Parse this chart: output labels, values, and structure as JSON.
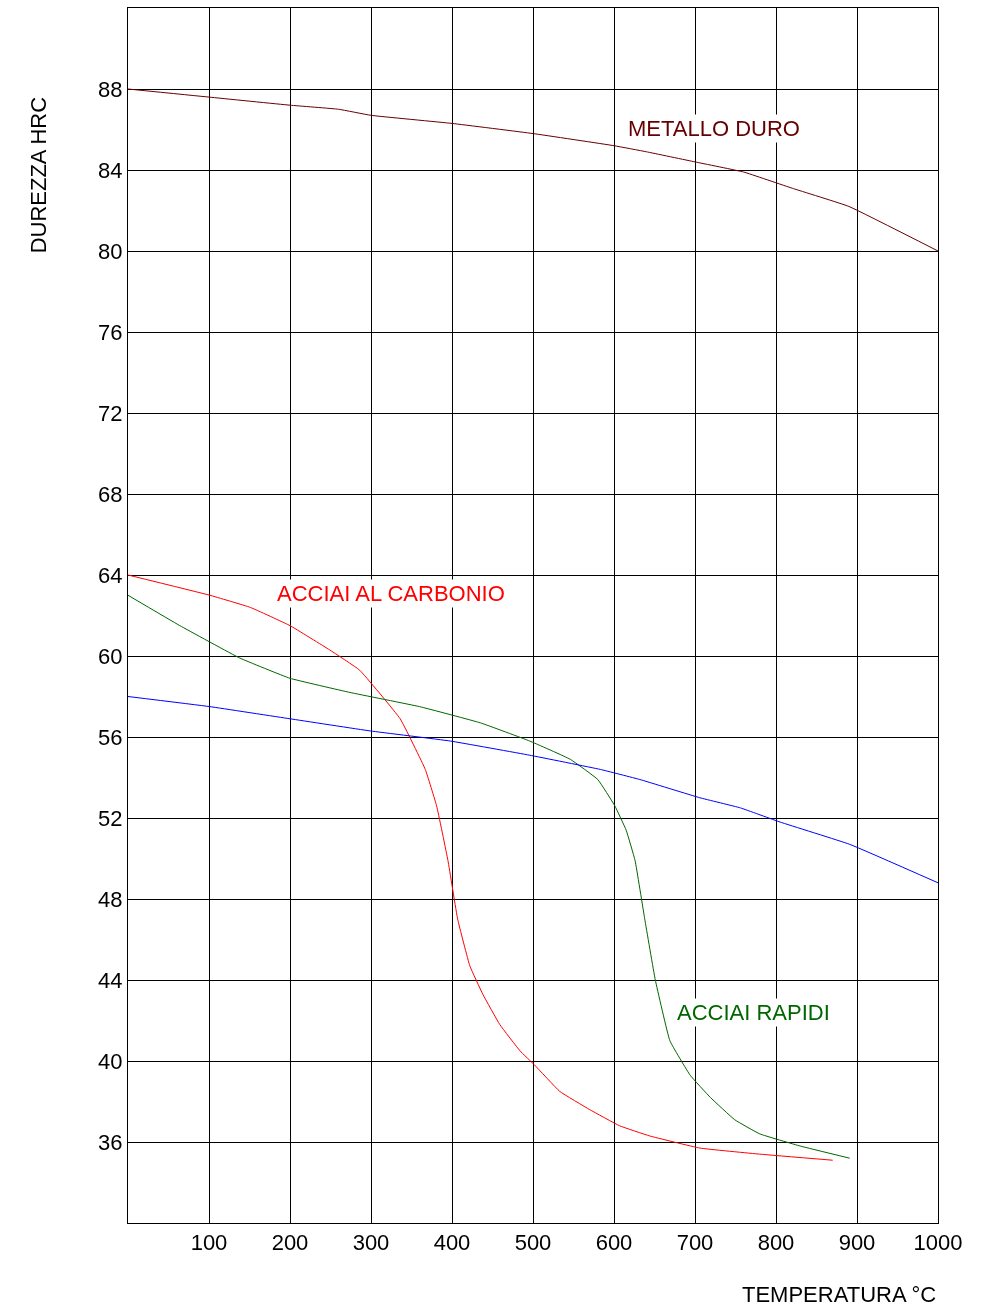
{
  "chart_data": {
    "type": "line",
    "xlabel": "TEMPERATURA °C",
    "ylabel": "DUREZZA HRC",
    "xlim": [
      0,
      1000
    ],
    "xticks": [
      100,
      200,
      300,
      400,
      500,
      600,
      700,
      800,
      900,
      1000
    ],
    "ylim": [
      32,
      92
    ],
    "yticks": [
      36,
      40,
      44,
      48,
      52,
      56,
      60,
      64,
      68,
      72,
      76,
      80,
      84,
      88
    ],
    "grid": true,
    "legend": false,
    "marker": "none",
    "line_style": "solid",
    "series": [
      {
        "name": "METALLO DURO",
        "color": "#660000",
        "x": [
          0,
          100,
          200,
          260,
          300,
          400,
          500,
          600,
          640,
          700,
          760,
          820,
          890,
          1000
        ],
        "values": [
          88,
          87.6,
          87.2,
          87.0,
          86.7,
          86.3,
          85.8,
          85.2,
          84.9,
          84.4,
          83.9,
          83.1,
          82.2,
          80
        ]
      },
      {
        "name": "ACCIAI AL CARBONIO",
        "color": "#ff0000",
        "x": [
          0,
          101,
          151,
          200,
          249,
          286,
          336,
          367,
          381,
          395,
          407,
          422,
          438,
          459,
          484,
          502,
          533,
          570,
          607,
          644,
          706,
          780,
          870
        ],
        "values": [
          64,
          63.0,
          62.4,
          61.5,
          60.3,
          59.3,
          56.9,
          54.4,
          52.6,
          49.9,
          47.0,
          44.7,
          43.3,
          41.8,
          40.5,
          39.8,
          38.5,
          37.6,
          36.8,
          36.3,
          35.7,
          35.4,
          35.1
        ]
      },
      {
        "name": "ACCIAI RAPIDI",
        "color": "#006600",
        "x": [
          0,
          64,
          138,
          200,
          274,
          360,
          435,
          496,
          546,
          580,
          601,
          615,
          626,
          638,
          651,
          669,
          694,
          719,
          749,
          780,
          830,
          891
        ],
        "values": [
          63.0,
          61.5,
          59.9,
          58.9,
          58.2,
          57.5,
          56.7,
          55.8,
          54.9,
          53.9,
          52.6,
          51.4,
          49.9,
          47.0,
          44.0,
          41.0,
          39.3,
          38.2,
          37.1,
          36.4,
          35.8,
          35.2
        ]
      },
      {
        "color": "#0000ff",
        "x": [
          0,
          101,
          200,
          299,
          398,
          496,
          583,
          632,
          706,
          756,
          805,
          891,
          1000
        ],
        "values": [
          58.0,
          57.5,
          56.9,
          56.3,
          55.8,
          55.1,
          54.4,
          53.9,
          53.0,
          52.5,
          51.8,
          50.7,
          48.8
        ]
      }
    ]
  }
}
